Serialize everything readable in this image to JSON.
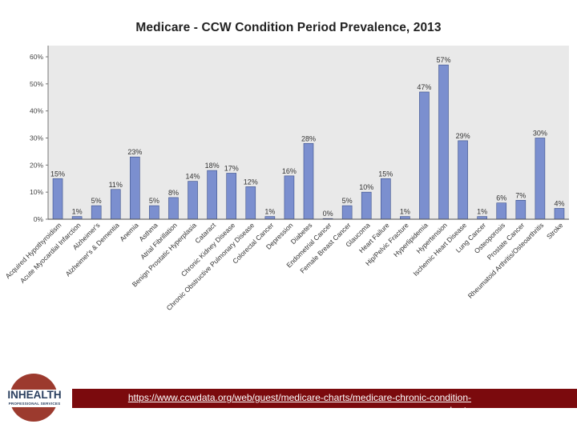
{
  "chart_data": {
    "type": "bar",
    "title": "Medicare - CCW Condition Period Prevalence, 2013",
    "xlabel": "",
    "ylabel": "",
    "ylim": [
      0,
      60
    ],
    "yticks": [
      "0%",
      "10%",
      "20%",
      "30%",
      "40%",
      "50%",
      "60%"
    ],
    "grid": false,
    "bar_color": "#7b8fcf",
    "categories": [
      "Acquired Hypothyroidism",
      "Acute Myocardial Infarction",
      "Alzheimer's",
      "Alzheimer's & Dementia",
      "Anemia",
      "Asthma",
      "Atrial Fibrillation",
      "Benign Prostatic Hyperplasia",
      "Cataract",
      "Chronic Kidney Disease",
      "Chronic Obstructive Pulmonary Disease",
      "Colorectal Cancer",
      "Depression",
      "Diabetes",
      "Endometrial Cancer",
      "Female Breast Cancer",
      "Glaucoma",
      "Heart Failure",
      "Hip/Pelvic Fracture",
      "Hyperlipidemia",
      "Hypertension",
      "Ischemic Heart Disease",
      "Lung Cancer",
      "Osteoporosis",
      "Prostate Cancer",
      "Rheumatoid Arthritis/Osteoarthritis",
      "Stroke"
    ],
    "values": [
      15,
      1,
      5,
      11,
      23,
      5,
      8,
      14,
      18,
      17,
      12,
      1,
      16,
      28,
      0,
      5,
      10,
      15,
      1,
      47,
      57,
      29,
      1,
      6,
      7,
      30,
      4
    ],
    "labels": [
      "15%",
      "1%",
      "5%",
      "11%",
      "23%",
      "5%",
      "8%",
      "14%",
      "18%",
      "17%",
      "12%",
      "1%",
      "16%",
      "28%",
      "0%",
      "5%",
      "10%",
      "15%",
      "1%",
      "47%",
      "57%",
      "29%",
      "1%",
      "6%",
      "7%",
      "30%",
      "4%"
    ]
  },
  "footer": {
    "source_url": "https://www.ccwdata.org/web/guest/medicare-charts/medicare-chronic-condition-charts"
  },
  "logo": {
    "name": "INHEALTH",
    "tagline": "PROFESSIONAL SERVICES"
  },
  "colors": {
    "footer_bar": "#7b0a0d",
    "logo_circle": "#9c3a2e",
    "plot_background": "#e9e9e9"
  }
}
